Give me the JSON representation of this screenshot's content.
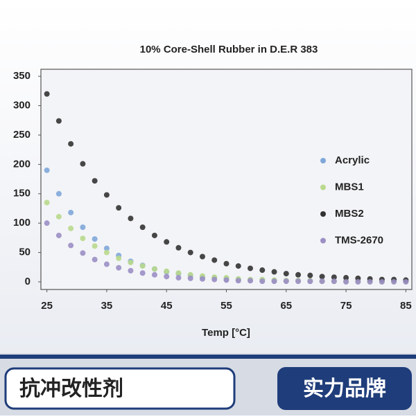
{
  "chart_data": {
    "type": "scatter",
    "title": "10% Core-Shell Rubber in D.E.R 383",
    "x_label": "Temp [°C]",
    "x": [
      25,
      27,
      29,
      31,
      33,
      35,
      37,
      39,
      41,
      43,
      45,
      47,
      49,
      51,
      53,
      55,
      57,
      59,
      61,
      63,
      65,
      67,
      69,
      71,
      73,
      75,
      77,
      79,
      81,
      83,
      85
    ],
    "series": [
      {
        "name": "Acrylic",
        "color": "#7fa7d9",
        "values": [
          190,
          150,
          118,
          93,
          73,
          57,
          45,
          35,
          28,
          22,
          17,
          14,
          11,
          8,
          7,
          5,
          4,
          3,
          3,
          2,
          2,
          2,
          1,
          1,
          1,
          1,
          1,
          1,
          1,
          1,
          1
        ]
      },
      {
        "name": "MBS1",
        "color": "#b9d98c",
        "values": [
          135,
          111,
          91,
          74,
          61,
          50,
          40,
          33,
          27,
          22,
          18,
          15,
          12,
          10,
          8,
          7,
          5,
          4,
          4,
          3,
          2,
          2,
          2,
          1,
          1,
          1,
          1,
          1,
          1,
          1,
          1
        ]
      },
      {
        "name": "MBS2",
        "color": "#333333",
        "values": [
          320,
          274,
          235,
          201,
          172,
          148,
          126,
          108,
          93,
          79,
          68,
          58,
          50,
          43,
          37,
          31,
          27,
          23,
          20,
          17,
          14,
          12,
          11,
          9,
          8,
          7,
          6,
          5,
          4,
          4,
          3
        ]
      },
      {
        "name": "TMS-2670",
        "color": "#9b8fc4",
        "values": [
          100,
          79,
          62,
          49,
          38,
          30,
          24,
          19,
          15,
          12,
          9,
          7,
          6,
          5,
          4,
          3,
          2,
          2,
          1,
          1,
          1,
          1,
          1,
          1,
          1,
          0,
          0,
          0,
          0,
          0,
          0
        ]
      }
    ],
    "xlim": [
      24,
      86
    ],
    "xticks": [
      25,
      35,
      45,
      55,
      65,
      75,
      85
    ],
    "ylim": [
      -13,
      362
    ],
    "yticks": [
      0,
      50,
      100,
      150,
      200,
      250,
      300,
      350
    ]
  },
  "banner": {
    "left": "抗冲改性剂",
    "right": "实力品牌"
  }
}
